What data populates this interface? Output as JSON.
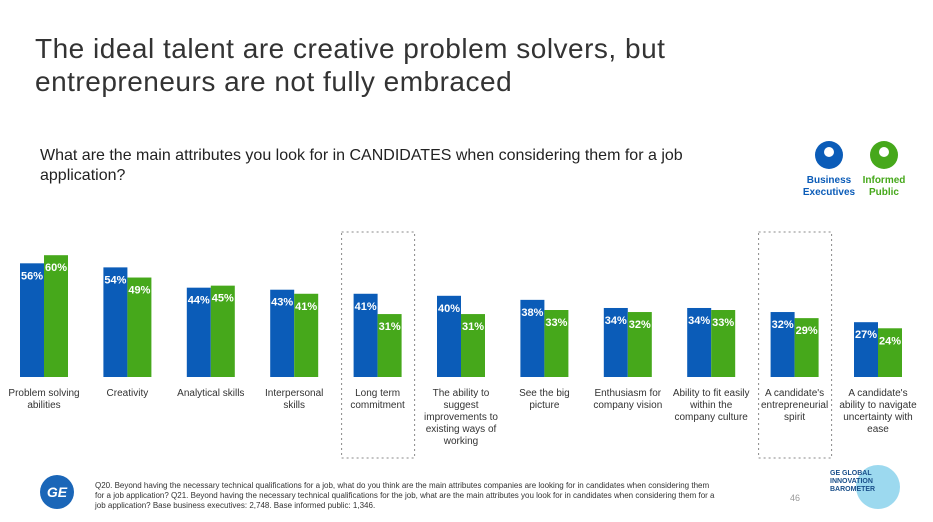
{
  "chart_data": {
    "type": "bar",
    "title": "The ideal talent are creative problem solvers, but entrepreneurs are not fully embraced",
    "subtitle": "What are the main attributes you look for in CANDIDATES when considering them for a job application?",
    "categories": [
      "Problem solving abilities",
      "Creativity",
      "Analytical skills",
      "Interpersonal skills",
      "Long term commitment",
      "The ability to suggest improvements to existing ways of working",
      "See the big picture",
      "Enthusiasm for company vision",
      "Ability to fit easily within the company culture",
      "A candidate's entrepreneurial spirit",
      "A candidate's ability to navigate uncertainty with ease"
    ],
    "series": [
      {
        "name": "Business Executives",
        "color": "#0b5cb8",
        "values": [
          56,
          54,
          44,
          43,
          41,
          40,
          38,
          34,
          34,
          32,
          27
        ],
        "value_labels": [
          "56%",
          "54%",
          "44%",
          "43%",
          "41%",
          "40%",
          "38%",
          "34%",
          "34%",
          "32%",
          "27%"
        ]
      },
      {
        "name": "Informed Public",
        "color": "#46a81b",
        "values": [
          60,
          49,
          45,
          41,
          31,
          31,
          33,
          32,
          33,
          29,
          24
        ],
        "value_labels": [
          "60%",
          "49%",
          "45%",
          "41%",
          "31%",
          "31%",
          "33%",
          "32%",
          "33%",
          "29%",
          "24%"
        ]
      }
    ],
    "highlighted": [
      4,
      9
    ]
  },
  "footnote": "Q20. Beyond having the necessary technical qualifications for a job, what do you think are the main attributes companies are looking for in candidates when considering them for a job application? Q21. Beyond having the necessary technical qualifications for the job, what are the main attributes you look for in candidates when considering them for a job application? Base business executives: 2,748. Base informed public: 1,346.",
  "page_number": "46",
  "logo": {
    "company": "GE",
    "badge": "GE GLOBAL INNOVATION BAROMETER"
  }
}
